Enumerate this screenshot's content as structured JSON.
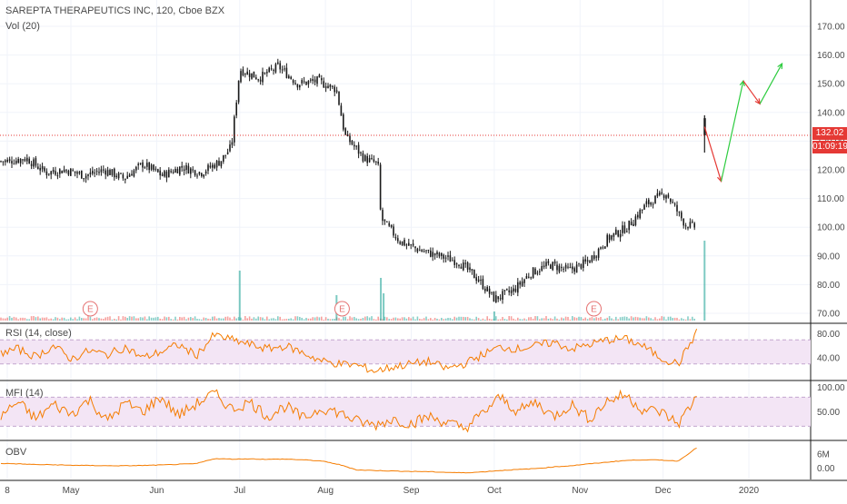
{
  "header": {
    "title": "SAREPTA THERAPEUTICS INC, 120, Cboe BZX",
    "volume_label": "Vol (20)"
  },
  "indicators": {
    "rsi_label": "RSI (14, close)",
    "mfi_label": "MFI (14)",
    "obv_label": "OBV"
  },
  "badges": {
    "last_price": "132.02",
    "countdown": "01:09:19"
  },
  "colors": {
    "up": "#26a69a",
    "down": "#ef5350",
    "candle": "#1a1a1a",
    "indicator_line": "#f57c00",
    "band_fill": "#f3e5f5",
    "band_line": "#c3a7cf",
    "price_line": "#e53935",
    "arrow_down": "#e53935",
    "arrow_up": "#2ecc40",
    "earnings": "#e57373"
  },
  "earnings_marker": "E",
  "chart_data": [
    {
      "type": "line",
      "panel": "price",
      "ylim": [
        67,
        178
      ],
      "y_ticks": [
        "170.00",
        "160.00",
        "150.00",
        "140.00",
        "130.00",
        "120.00",
        "110.00",
        "100.00",
        "90.00",
        "80.00",
        "70.00"
      ],
      "x_ticks": [
        "8",
        "May",
        "Jun",
        "Jul",
        "Aug",
        "Sep",
        "Oct",
        "Nov",
        "Dec",
        "2020"
      ],
      "close_points": [
        [
          "2019-04-08",
          123
        ],
        [
          "2019-04-15",
          124
        ],
        [
          "2019-04-22",
          119
        ],
        [
          "2019-04-29",
          120
        ],
        [
          "2019-05-06",
          118
        ],
        [
          "2019-05-13",
          120
        ],
        [
          "2019-05-20",
          117
        ],
        [
          "2019-05-27",
          122
        ],
        [
          "2019-06-03",
          118
        ],
        [
          "2019-06-10",
          121
        ],
        [
          "2019-06-17",
          119
        ],
        [
          "2019-06-24",
          123
        ],
        [
          "2019-06-28",
          128
        ],
        [
          "2019-07-01",
          155
        ],
        [
          "2019-07-08",
          152
        ],
        [
          "2019-07-15",
          156
        ],
        [
          "2019-07-22",
          150
        ],
        [
          "2019-07-29",
          151
        ],
        [
          "2019-08-05",
          148
        ],
        [
          "2019-08-08",
          132
        ],
        [
          "2019-08-15",
          124
        ],
        [
          "2019-08-20",
          122
        ],
        [
          "2019-08-21",
          103
        ],
        [
          "2019-08-28",
          95
        ],
        [
          "2019-09-04",
          92
        ],
        [
          "2019-09-11",
          90
        ],
        [
          "2019-09-18",
          88
        ],
        [
          "2019-09-25",
          82
        ],
        [
          "2019-10-01",
          75
        ],
        [
          "2019-10-08",
          78
        ],
        [
          "2019-10-14",
          84
        ],
        [
          "2019-10-21",
          87
        ],
        [
          "2019-10-28",
          85
        ],
        [
          "2019-11-04",
          88
        ],
        [
          "2019-11-11",
          96
        ],
        [
          "2019-11-18",
          100
        ],
        [
          "2019-11-25",
          108
        ],
        [
          "2019-12-02",
          112
        ],
        [
          "2019-12-09",
          101
        ],
        [
          "2019-12-13",
          100
        ]
      ],
      "gap_up": {
        "date": "2019-12-16",
        "open": 126,
        "high": 139,
        "last": 132.02
      },
      "projection": [
        [
          "2019-12-16",
          135
        ],
        [
          "2019-12-22",
          116
        ],
        [
          "2019-12-30",
          151
        ],
        [
          "2020-01-05",
          143
        ],
        [
          "2020-01-13",
          157
        ]
      ],
      "horizontal_line": 132.02
    },
    {
      "type": "bar",
      "panel": "volume",
      "name": "Vol (20)",
      "spikes": [
        [
          "2019-07-01",
          55
        ],
        [
          "2019-08-05",
          28
        ],
        [
          "2019-08-21",
          47
        ],
        [
          "2019-08-22",
          30
        ],
        [
          "2019-10-01",
          10
        ],
        [
          "2019-12-16",
          88
        ]
      ],
      "earnings_dates": [
        "2019-05-08",
        "2019-08-07",
        "2019-11-06"
      ]
    },
    {
      "type": "line",
      "panel": "rsi",
      "name": "RSI (14, close)",
      "ylim": [
        0,
        100
      ],
      "y_ticks": [
        "80.00",
        "40.00"
      ],
      "band": [
        30,
        70
      ],
      "values": [
        48,
        55,
        42,
        60,
        38,
        52,
        45,
        58,
        40,
        50,
        62,
        44,
        78,
        70,
        62,
        55,
        60,
        48,
        35,
        30,
        28,
        18,
        25,
        30,
        34,
        22,
        30,
        45,
        58,
        55,
        60,
        66,
        55,
        62,
        70,
        72,
        60,
        40,
        30,
        82
      ]
    },
    {
      "type": "line",
      "panel": "mfi",
      "name": "MFI (14)",
      "ylim": [
        0,
        100
      ],
      "y_ticks": [
        "100.00",
        "50.00"
      ],
      "band": [
        20,
        80
      ],
      "values": [
        40,
        70,
        35,
        65,
        45,
        75,
        30,
        68,
        50,
        80,
        42,
        66,
        88,
        55,
        70,
        40,
        62,
        35,
        58,
        48,
        30,
        22,
        35,
        25,
        40,
        28,
        15,
        45,
        80,
        50,
        70,
        40,
        65,
        35,
        72,
        85,
        55,
        50,
        25,
        80
      ]
    },
    {
      "type": "line",
      "panel": "obv",
      "name": "OBV",
      "y_ticks": [
        "6M",
        "0.00"
      ],
      "values": [
        2.0,
        1.8,
        1.5,
        1.4,
        1.2,
        1.1,
        1.0,
        1.0,
        1.1,
        1.3,
        1.6,
        1.9,
        4.0,
        3.8,
        3.9,
        3.7,
        3.8,
        3.5,
        3.0,
        1.5,
        -0.8,
        -1.0,
        -1.2,
        -1.4,
        -1.5,
        -1.8,
        -2.0,
        -1.6,
        -1.0,
        -0.6,
        -0.2,
        0.5,
        1.0,
        1.8,
        2.5,
        3.2,
        3.5,
        3.4,
        3.0,
        8.5
      ]
    }
  ]
}
